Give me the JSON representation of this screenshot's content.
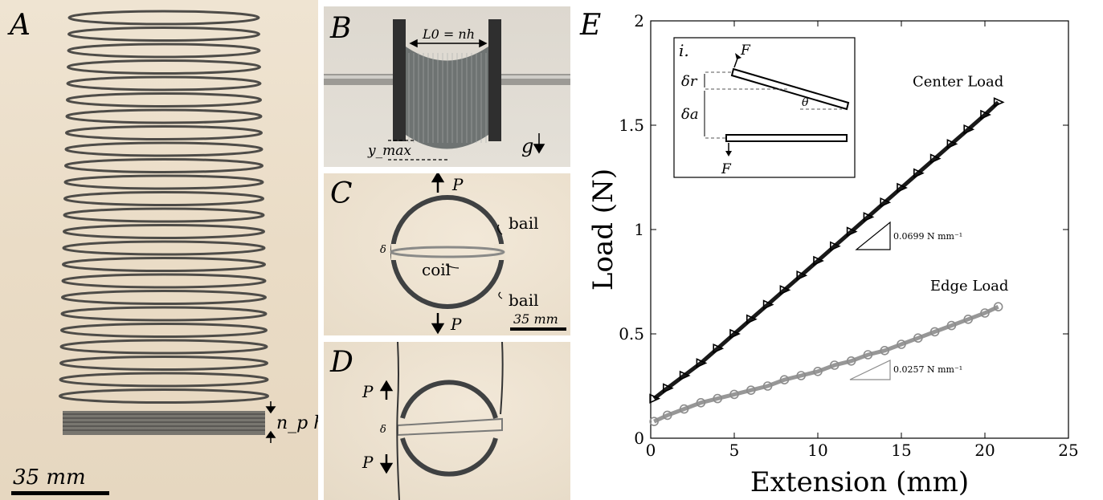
{
  "panels": {
    "a": {
      "label": "A",
      "scale_text": "35 mm",
      "annotation": "n_p h"
    },
    "b": {
      "label": "B",
      "length_text": "L0 = nh",
      "ymax_text": "y_max",
      "gravity_text": "g"
    },
    "c": {
      "label": "C",
      "force_top": "P",
      "force_bottom": "P",
      "bail_top": "bail",
      "bail_bottom": "bail",
      "coil": "coil",
      "delta": "δ",
      "scale_text": "35 mm"
    },
    "d": {
      "label": "D",
      "force_top": "P",
      "force_bottom": "P",
      "delta": "δ"
    },
    "e": {
      "label": "E"
    }
  },
  "chart_data": {
    "type": "scatter",
    "xlabel": "Extension (mm)",
    "ylabel": "Load (N)",
    "xlim": [
      0,
      25
    ],
    "ylim": [
      0,
      2
    ],
    "xticks": [
      0,
      5,
      10,
      15,
      20,
      25
    ],
    "yticks": [
      0,
      0.5,
      1,
      1.5,
      2
    ],
    "ytick_labels": [
      "0",
      "0.5",
      "1",
      "1.5",
      "2"
    ],
    "series": [
      {
        "name": "Center Load",
        "color": "#000000",
        "x": [
          0.2,
          1,
          2,
          3,
          4,
          5,
          6,
          7,
          8,
          9,
          10,
          11,
          12,
          13,
          14,
          15,
          16,
          17,
          18,
          19,
          20,
          20.8
        ],
        "y": [
          0.19,
          0.24,
          0.3,
          0.36,
          0.43,
          0.5,
          0.57,
          0.64,
          0.71,
          0.78,
          0.85,
          0.92,
          0.99,
          1.06,
          1.13,
          1.2,
          1.27,
          1.34,
          1.41,
          1.48,
          1.55,
          1.61
        ]
      },
      {
        "name": "Edge Load",
        "color": "#8c8c8c",
        "x": [
          0.2,
          1,
          2,
          3,
          4,
          5,
          6,
          7,
          8,
          9,
          10,
          11,
          12,
          13,
          14,
          15,
          16,
          17,
          18,
          19,
          20,
          20.8
        ],
        "y": [
          0.08,
          0.11,
          0.14,
          0.17,
          0.19,
          0.21,
          0.23,
          0.25,
          0.28,
          0.3,
          0.32,
          0.35,
          0.37,
          0.4,
          0.42,
          0.45,
          0.48,
          0.51,
          0.54,
          0.57,
          0.6,
          0.63
        ]
      }
    ],
    "slope_labels": [
      "0.0699 N mm⁻¹",
      "0.0257 N mm⁻¹"
    ],
    "inset": {
      "label": "i.",
      "force": "F",
      "delta_r": "δr",
      "delta_a": "δa",
      "theta": "θ"
    }
  }
}
